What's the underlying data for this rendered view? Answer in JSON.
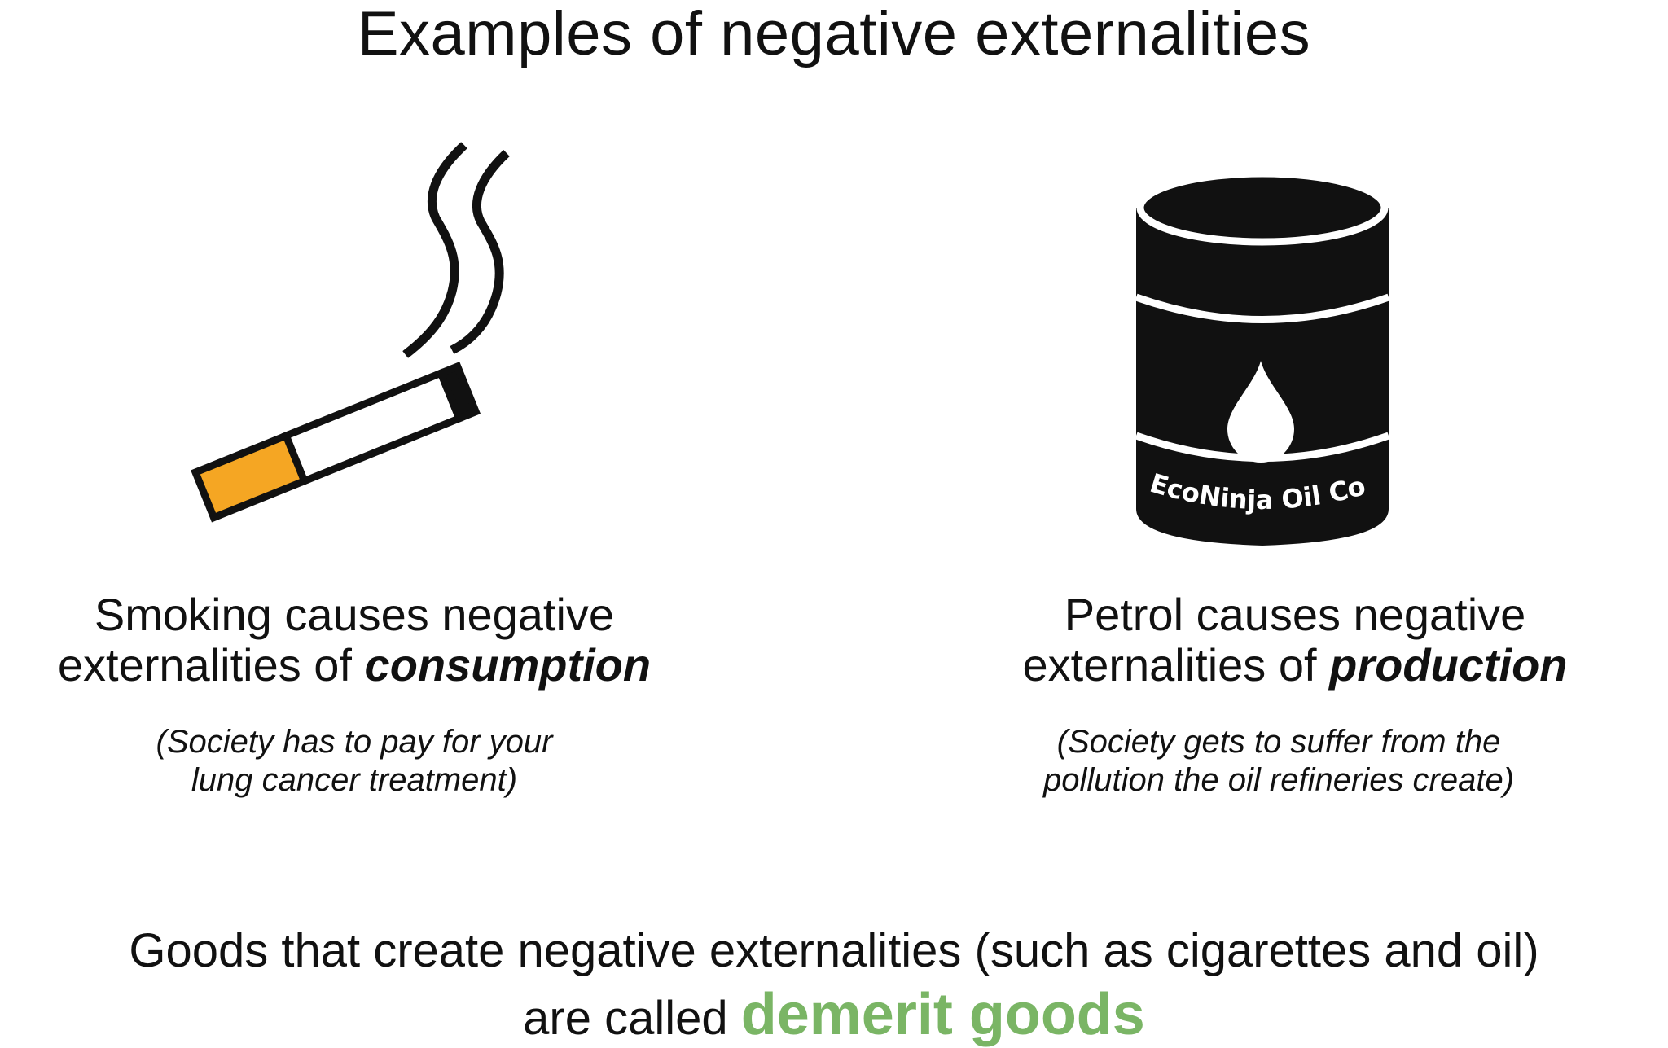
{
  "title": "Examples of negative externalities",
  "left": {
    "caption_line1": "Smoking causes negative",
    "caption_line2_prefix": "externalities of ",
    "caption_emphasis": "consumption",
    "note_line1": "(Society has to pay for your",
    "note_line2": "lung cancer treatment)",
    "icon": "cigarette-icon"
  },
  "right": {
    "caption_line1": "Petrol causes negative",
    "caption_line2_prefix": "externalities of ",
    "caption_emphasis": "production",
    "note_line1": "(Society gets to suffer from the",
    "note_line2": "pollution the oil refineries create)",
    "icon": "oil-barrel-icon",
    "barrel_label": "EcoNinja Oil Co."
  },
  "footer": {
    "line1": "Goods that create negative externalities (such as cigarettes and oil)",
    "line2_prefix": "are called ",
    "line2_emphasis": "demerit goods"
  },
  "colors": {
    "filter": "#f5a623",
    "emphasis_green": "#7ab565",
    "ink": "#111111"
  }
}
